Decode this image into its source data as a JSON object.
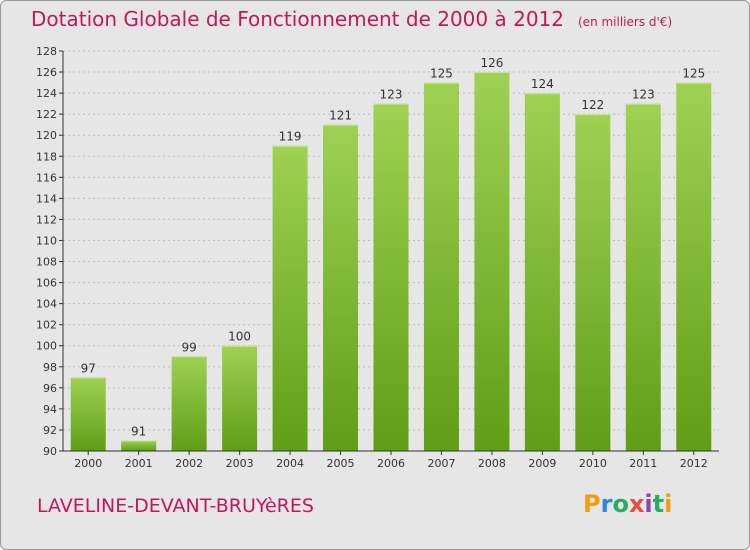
{
  "title": "Dotation Globale de Fonctionnement de 2000 à 2012",
  "unit": "(en milliers d'€)",
  "commune": "LAVELINE-DEVANT-BRUYèRES",
  "logo": {
    "letters": [
      "P",
      "r",
      "o",
      "x",
      "i",
      "t",
      "i"
    ],
    "colors": [
      "#f39c12",
      "#2e86de",
      "#27ae60",
      "#e74c3c",
      "#8e44ad",
      "#27ae60",
      "#f39c12"
    ]
  },
  "colors": {
    "bar_top": "#9fd153",
    "bar_bottom": "#5f9e16",
    "accent": "#c2185b"
  },
  "chart_data": {
    "type": "bar",
    "categories": [
      "2000",
      "2001",
      "2002",
      "2003",
      "2004",
      "2005",
      "2006",
      "2007",
      "2008",
      "2009",
      "2010",
      "2011",
      "2012"
    ],
    "values": [
      97,
      91,
      99,
      100,
      119,
      121,
      123,
      125,
      126,
      124,
      122,
      123,
      125
    ],
    "ylim": [
      90,
      128
    ],
    "yticks": [
      90,
      92,
      94,
      96,
      98,
      100,
      102,
      104,
      106,
      108,
      110,
      112,
      114,
      116,
      118,
      120,
      122,
      124,
      126,
      128
    ],
    "grid": true,
    "title": "Dotation Globale de Fonctionnement de 2000 à 2012",
    "ylabel": "(en milliers d'€)"
  }
}
